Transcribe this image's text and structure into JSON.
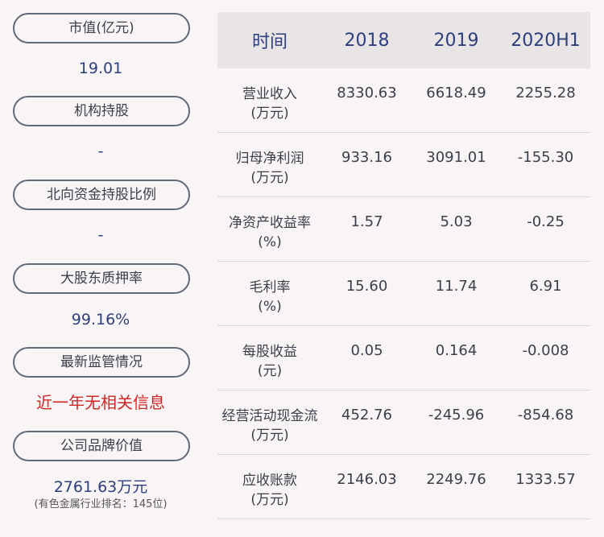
{
  "left_panel": {
    "items": [
      {
        "label": "市值(亿元)",
        "value": "19.01"
      },
      {
        "label": "机构持股",
        "value": "-"
      },
      {
        "label": "北向资金持股比例",
        "value": "-"
      },
      {
        "label": "大股东质押率",
        "value": "99.16%"
      },
      {
        "label": "最新监管情况",
        "value": "近一年无相关信息"
      },
      {
        "label": "公司品牌价值",
        "value": "2761.63万元",
        "note": "(有色金属行业排名：145位)"
      }
    ],
    "colors": {
      "value": "#2c3f7e",
      "alert": "#d32727"
    }
  },
  "table": {
    "headers": [
      "时间",
      "2018",
      "2019",
      "2020H1"
    ],
    "rows": [
      {
        "label": "营业收入",
        "unit": "(万元)",
        "values": [
          "8330.63",
          "6618.49",
          "2255.28"
        ]
      },
      {
        "label": "归母净利润",
        "unit": "(万元)",
        "values": [
          "933.16",
          "3091.01",
          "-155.30"
        ]
      },
      {
        "label": "净资产收益率",
        "unit": "(%)",
        "values": [
          "1.57",
          "5.03",
          "-0.25"
        ]
      },
      {
        "label": "毛利率",
        "unit": "(%)",
        "values": [
          "15.60",
          "11.74",
          "6.91"
        ]
      },
      {
        "label": "每股收益",
        "unit": "(元)",
        "values": [
          "0.05",
          "0.164",
          "-0.008"
        ]
      },
      {
        "label": "经营活动现金流",
        "unit": "(万元)",
        "values": [
          "452.76",
          "-245.96",
          "-854.68"
        ]
      },
      {
        "label": "应收账款",
        "unit": "(万元)",
        "values": [
          "2146.03",
          "2249.76",
          "1333.57"
        ]
      }
    ]
  }
}
